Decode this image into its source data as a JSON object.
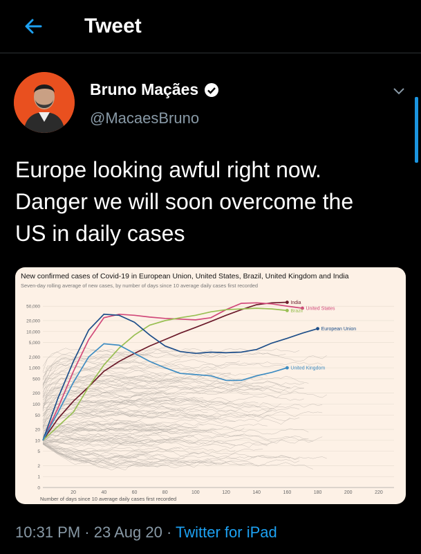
{
  "header": {
    "title": "Tweet",
    "back_icon": "back-arrow-icon"
  },
  "author": {
    "name": "Bruno Maçães",
    "handle": "@MacaesBruno",
    "verified_icon": "verified-badge-icon",
    "avatar_color": "#e9501f"
  },
  "tweet": {
    "lines": [
      "Europe looking awful right now.",
      "Danger we will soon overcome the",
      "US in daily cases"
    ],
    "time": "10:31 PM",
    "date": "23 Aug 20",
    "sep": "·",
    "source": "Twitter for iPad"
  },
  "colors": {
    "accent": "#1da1f2",
    "secondary_text": "#8899a6",
    "background": "#000000"
  },
  "chart_data": {
    "type": "line",
    "title": "New confirmed cases of Covid-19 in European Union, United States, Brazil, United Kingdom and India",
    "subtitle": "Seven-day rolling average of new cases, by number of days since 10 average daily cases first recorded",
    "xlabel": "Number of days since 10 average daily cases first recorded",
    "xlim": [
      0,
      230
    ],
    "x_ticks": [
      "20",
      "40",
      "60",
      "80",
      "100",
      "120",
      "140",
      "160",
      "180",
      "200",
      "220"
    ],
    "y_scale": "log",
    "y_ticks": [
      "50,000",
      "20,000",
      "10,000",
      "5,000",
      "2,000",
      "1,000",
      "500",
      "200",
      "100",
      "50",
      "20",
      "10",
      "5",
      "2",
      "1",
      "0"
    ],
    "y_tick_values": [
      50000,
      20000,
      10000,
      5000,
      2000,
      1000,
      500,
      200,
      100,
      50,
      20,
      10,
      5,
      2,
      1,
      0
    ],
    "series": [
      {
        "name": "India",
        "color": "#6b1a2a",
        "points": [
          [
            0,
            10
          ],
          [
            10,
            40
          ],
          [
            20,
            120
          ],
          [
            30,
            300
          ],
          [
            40,
            800
          ],
          [
            50,
            1500
          ],
          [
            60,
            2500
          ],
          [
            70,
            4000
          ],
          [
            80,
            6000
          ],
          [
            90,
            9000
          ],
          [
            100,
            13000
          ],
          [
            110,
            19000
          ],
          [
            120,
            28000
          ],
          [
            130,
            40000
          ],
          [
            140,
            55000
          ],
          [
            150,
            62000
          ],
          [
            160,
            64000
          ]
        ]
      },
      {
        "name": "United States",
        "color": "#d1497a",
        "points": [
          [
            0,
            10
          ],
          [
            10,
            80
          ],
          [
            20,
            800
          ],
          [
            30,
            6000
          ],
          [
            40,
            24000
          ],
          [
            50,
            30000
          ],
          [
            60,
            28000
          ],
          [
            70,
            25000
          ],
          [
            80,
            23000
          ],
          [
            90,
            22000
          ],
          [
            100,
            21000
          ],
          [
            110,
            24000
          ],
          [
            120,
            40000
          ],
          [
            130,
            60000
          ],
          [
            140,
            62000
          ],
          [
            150,
            58000
          ],
          [
            160,
            50000
          ],
          [
            170,
            44000
          ]
        ]
      },
      {
        "name": "Brazil",
        "color": "#99bf53",
        "points": [
          [
            0,
            10
          ],
          [
            20,
            60
          ],
          [
            30,
            300
          ],
          [
            40,
            1200
          ],
          [
            50,
            3500
          ],
          [
            60,
            8000
          ],
          [
            70,
            15000
          ],
          [
            80,
            20000
          ],
          [
            90,
            24000
          ],
          [
            100,
            28000
          ],
          [
            110,
            35000
          ],
          [
            120,
            40000
          ],
          [
            130,
            42000
          ],
          [
            140,
            44000
          ],
          [
            150,
            42000
          ],
          [
            160,
            38000
          ]
        ]
      },
      {
        "name": "European Union",
        "color": "#1d4e89",
        "points": [
          [
            0,
            10
          ],
          [
            10,
            150
          ],
          [
            20,
            1500
          ],
          [
            30,
            11000
          ],
          [
            40,
            30000
          ],
          [
            50,
            28000
          ],
          [
            60,
            18000
          ],
          [
            70,
            8000
          ],
          [
            80,
            4000
          ],
          [
            90,
            2800
          ],
          [
            100,
            2500
          ],
          [
            110,
            2700
          ],
          [
            120,
            2600
          ],
          [
            130,
            2700
          ],
          [
            140,
            3200
          ],
          [
            150,
            4800
          ],
          [
            160,
            6500
          ],
          [
            170,
            9000
          ],
          [
            180,
            12000
          ]
        ]
      },
      {
        "name": "United Kingdom",
        "color": "#3d8cc2",
        "points": [
          [
            0,
            10
          ],
          [
            10,
            60
          ],
          [
            20,
            400
          ],
          [
            30,
            2000
          ],
          [
            40,
            4600
          ],
          [
            50,
            4200
          ],
          [
            60,
            2500
          ],
          [
            70,
            1500
          ],
          [
            80,
            1000
          ],
          [
            90,
            700
          ],
          [
            100,
            650
          ],
          [
            110,
            600
          ],
          [
            120,
            450
          ],
          [
            130,
            450
          ],
          [
            140,
            600
          ],
          [
            150,
            750
          ],
          [
            160,
            1000
          ]
        ]
      }
    ],
    "grid": true,
    "legend": "inline labels at line ends"
  }
}
